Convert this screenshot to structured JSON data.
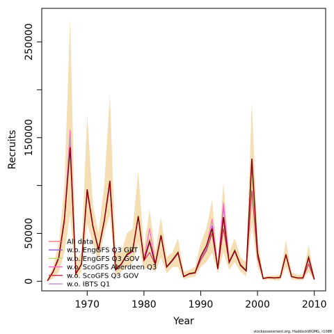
{
  "chart_data": {
    "type": "line",
    "xlabel": "Year",
    "ylabel": "Recruits",
    "xlim": [
      1962,
      2012
    ],
    "ylim": [
      -10000,
      285000
    ],
    "xticks": [
      1970,
      1980,
      1990,
      2000,
      2010
    ],
    "yticks": [
      0,
      50000,
      150000,
      250000
    ],
    "yticks_minor": [
      100000,
      200000
    ],
    "legend_position": "bottom-left",
    "footnote": "stockassessment.org, HaddockWGMG, r1088",
    "x": [
      1963,
      1964,
      1965,
      1966,
      1967,
      1968,
      1969,
      1970,
      1971,
      1972,
      1973,
      1974,
      1975,
      1976,
      1977,
      1978,
      1979,
      1980,
      1981,
      1982,
      1983,
      1984,
      1985,
      1986,
      1987,
      1988,
      1989,
      1990,
      1991,
      1992,
      1993,
      1994,
      1995,
      1996,
      1997,
      1998,
      1999,
      2000,
      2001,
      2002,
      2003,
      2004,
      2005,
      2006,
      2007,
      2008,
      2009,
      2010
    ],
    "band": {
      "color": "#f5deb3",
      "upper": [
        3000,
        15000,
        40000,
        100000,
        275000,
        20000,
        30000,
        175000,
        80000,
        50000,
        100000,
        195000,
        30000,
        30000,
        50000,
        55000,
        115000,
        35000,
        75000,
        30000,
        67000,
        25000,
        30000,
        45000,
        10000,
        12000,
        15000,
        40000,
        55000,
        85000,
        22000,
        103000,
        30000,
        45000,
        25000,
        20000,
        187000,
        45000,
        5000,
        6000,
        6000,
        7000,
        43000,
        9000,
        7000,
        7000,
        38000,
        4000
      ],
      "lower": [
        0,
        3000,
        10000,
        30000,
        70000,
        3000,
        10000,
        60000,
        40000,
        20000,
        50000,
        70000,
        5000,
        10000,
        15000,
        20000,
        40000,
        12000,
        15000,
        10000,
        25000,
        8000,
        15000,
        15000,
        2000,
        4000,
        5000,
        15000,
        20000,
        30000,
        8000,
        30000,
        12000,
        20000,
        10000,
        5000,
        60000,
        15000,
        1000,
        2000,
        1000,
        1000,
        15000,
        2000,
        1000,
        1000,
        10000,
        500
      ]
    },
    "series": [
      {
        "name": "All data",
        "color": "#f08080",
        "values": [
          500,
          10000,
          25000,
          65000,
          150000,
          8000,
          18000,
          95000,
          58000,
          33000,
          63000,
          102000,
          12000,
          18000,
          28000,
          32000,
          68000,
          22000,
          42000,
          18000,
          48000,
          15000,
          22000,
          30000,
          5000,
          8000,
          9000,
          25000,
          35000,
          55000,
          13000,
          65000,
          20000,
          32000,
          17000,
          11000,
          125000,
          30000,
          3000,
          4000,
          3500,
          4000,
          28000,
          5000,
          3500,
          3500,
          24000,
          2000
        ]
      },
      {
        "name": "w.o. EngGFS Q3 GRT",
        "color": "#9966cc",
        "values": [
          500,
          10000,
          24000,
          64000,
          148000,
          7500,
          17500,
          94000,
          57000,
          32000,
          62000,
          101000,
          11500,
          17500,
          27000,
          31000,
          67000,
          21000,
          40000,
          17000,
          47000,
          14500,
          21000,
          29000,
          4500,
          7500,
          8500,
          24000,
          34000,
          58000,
          12500,
          78000,
          19000,
          31000,
          16000,
          10500,
          122000,
          29000,
          2800,
          3800,
          3300,
          3800,
          27000,
          4800,
          3300,
          3300,
          23000,
          1800
        ]
      },
      {
        "name": "w.o. EngGFS Q3 GOV",
        "color": "#b8d96a",
        "values": [
          500,
          10500,
          25500,
          66000,
          140000,
          8500,
          18500,
          96000,
          59000,
          34000,
          64000,
          103000,
          12500,
          18500,
          29000,
          33000,
          69000,
          23000,
          43000,
          19000,
          49000,
          15500,
          23000,
          31000,
          5500,
          8500,
          9500,
          26000,
          36000,
          52000,
          13500,
          60000,
          21000,
          33000,
          18000,
          11500,
          110000,
          31000,
          3200,
          4200,
          3700,
          4200,
          29000,
          5200,
          3700,
          3700,
          25000,
          2200
        ]
      },
      {
        "name": "w.o. ScoGFS Aberdeen Q3",
        "color": "#ff66cc",
        "values": [
          500,
          10000,
          25000,
          66000,
          158000,
          8000,
          18000,
          95000,
          58000,
          33000,
          63000,
          104000,
          12000,
          18000,
          28000,
          32000,
          68000,
          22000,
          55000,
          18000,
          48000,
          15000,
          22000,
          30000,
          5000,
          8000,
          9000,
          25000,
          35000,
          65000,
          13000,
          82000,
          20000,
          32000,
          17000,
          11000,
          128000,
          30000,
          3000,
          4000,
          3500,
          4000,
          28000,
          5000,
          3500,
          3500,
          24000,
          2000
        ]
      },
      {
        "name": "w.o. ScoGFS Q3 GOV",
        "color": "#cc3355",
        "values": [
          500,
          9500,
          24000,
          63000,
          145000,
          7800,
          17800,
          93000,
          57000,
          32500,
          62500,
          101000,
          11800,
          17800,
          27500,
          31500,
          67500,
          21500,
          30000,
          17500,
          47500,
          14800,
          21500,
          29500,
          4800,
          7800,
          8800,
          22000,
          32000,
          50000,
          12800,
          55000,
          19500,
          31500,
          16500,
          10800,
          95000,
          25000,
          2900,
          3900,
          3400,
          3900,
          27500,
          4900,
          3400,
          3400,
          18000,
          1900
        ]
      },
      {
        "name": "w.o. IBTS Q1",
        "color": "#bb99cc",
        "values": [
          500,
          10000,
          25000,
          65000,
          150000,
          8000,
          18000,
          95000,
          58000,
          33000,
          63000,
          102000,
          12000,
          18000,
          28000,
          32000,
          68000,
          22000,
          42000,
          18000,
          48000,
          15000,
          22000,
          30000,
          5000,
          8000,
          9000,
          25000,
          35000,
          55000,
          13000,
          65000,
          20000,
          32000,
          17000,
          11000,
          125000,
          30000,
          3000,
          4000,
          3500,
          4000,
          28000,
          5000,
          3500,
          3500,
          24000,
          2000
        ]
      },
      {
        "name": "",
        "color": "#8b0000",
        "values": [
          500,
          10000,
          25000,
          65000,
          140000,
          8000,
          18000,
          96000,
          58000,
          33000,
          63000,
          105000,
          12000,
          18000,
          28000,
          32000,
          68000,
          22000,
          42000,
          18000,
          48000,
          15000,
          22000,
          30000,
          5000,
          8000,
          9000,
          26000,
          37000,
          55000,
          13000,
          67000,
          20000,
          32000,
          17000,
          11000,
          128000,
          30000,
          3000,
          4000,
          3500,
          4000,
          28000,
          5000,
          3500,
          3500,
          25000,
          2000
        ]
      }
    ]
  }
}
